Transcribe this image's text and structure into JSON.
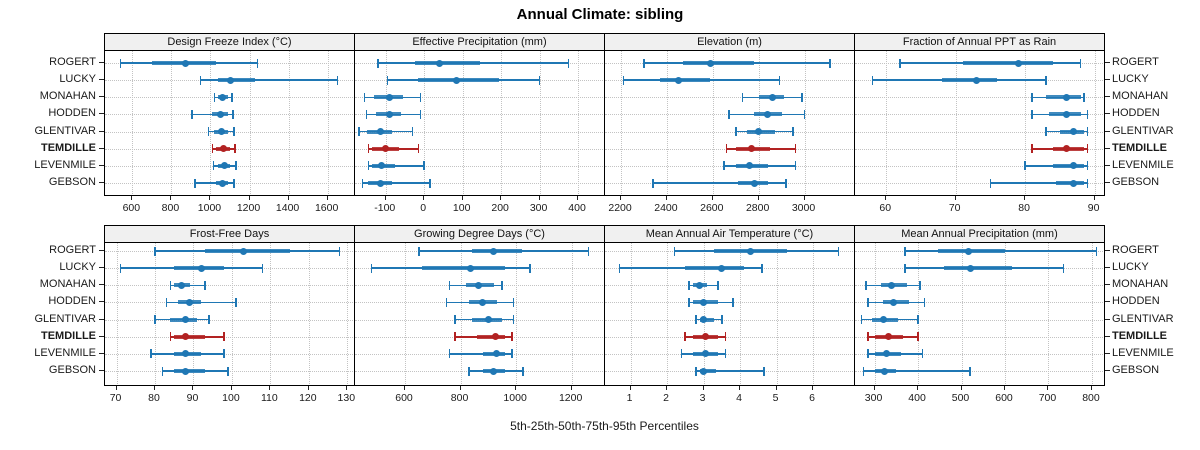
{
  "title": "Annual Climate: sibling",
  "caption": "5th-25th-50th-75th-95th Percentiles",
  "sites": [
    "ROGERT",
    "LUCKY",
    "MONAHAN",
    "HODDEN",
    "GLENTIVAR",
    "TEMDILLE",
    "LEVENMILE",
    "GEBSON"
  ],
  "highlight_site": "TEMDILLE",
  "colors": {
    "series": "#1f77b4",
    "highlight": "#b22222",
    "header_bg": "#f0f0f0",
    "panel_border": "#000000",
    "grid": "#c3c3c3",
    "tick": "#222222",
    "text": "#1a1a1a"
  },
  "chart_data": {
    "type": "dotplot",
    "percentiles": [
      "5th",
      "25th",
      "50th",
      "75th",
      "95th"
    ],
    "note": "values[siteIndex] = [p5, p25, p50, p75, p95] in site order",
    "legend_position": "none",
    "grid": true,
    "panels": [
      {
        "label": "Design Freeze Index (°C)",
        "row": 0,
        "col": 0,
        "domain": [
          460,
          1740
        ],
        "ticks": [
          600,
          800,
          1000,
          1200,
          1400,
          1600
        ],
        "values": [
          [
            540,
            700,
            870,
            1030,
            1240
          ],
          [
            950,
            1040,
            1100,
            1230,
            1650
          ],
          [
            1020,
            1040,
            1060,
            1090,
            1110
          ],
          [
            905,
            1010,
            1050,
            1090,
            1115
          ],
          [
            990,
            1020,
            1055,
            1090,
            1120
          ],
          [
            1010,
            1030,
            1065,
            1100,
            1125
          ],
          [
            1015,
            1040,
            1070,
            1100,
            1130
          ],
          [
            920,
            1030,
            1060,
            1090,
            1120
          ]
        ]
      },
      {
        "label": "Effective Precipitation (mm)",
        "row": 0,
        "col": 1,
        "domain": [
          -180,
          470
        ],
        "ticks": [
          -100,
          0,
          100,
          200,
          300,
          400
        ],
        "values": [
          [
            -120,
            -25,
            40,
            145,
            375
          ],
          [
            -95,
            -15,
            85,
            195,
            300
          ],
          [
            -155,
            -130,
            -90,
            -55,
            -10
          ],
          [
            -150,
            -125,
            -90,
            -60,
            -10
          ],
          [
            -170,
            -150,
            -115,
            -85,
            -30
          ],
          [
            -145,
            -135,
            -100,
            -65,
            -15
          ],
          [
            -145,
            -135,
            -110,
            -75,
            0
          ],
          [
            -160,
            -145,
            -115,
            -85,
            15
          ]
        ]
      },
      {
        "label": "Elevation (m)",
        "row": 0,
        "col": 2,
        "domain": [
          2130,
          3220
        ],
        "ticks": [
          2200,
          2400,
          2600,
          2800,
          3000
        ],
        "values": [
          [
            2300,
            2470,
            2590,
            2780,
            3110
          ],
          [
            2210,
            2370,
            2450,
            2590,
            2890
          ],
          [
            2730,
            2800,
            2860,
            2910,
            2990
          ],
          [
            2670,
            2780,
            2840,
            2900,
            3000
          ],
          [
            2700,
            2750,
            2800,
            2870,
            2950
          ],
          [
            2660,
            2700,
            2770,
            2850,
            2960
          ],
          [
            2650,
            2700,
            2760,
            2840,
            2960
          ],
          [
            2340,
            2710,
            2780,
            2840,
            2920
          ]
        ]
      },
      {
        "label": "Fraction of Annual PPT as Rain",
        "row": 0,
        "col": 3,
        "domain": [
          55.5,
          91.5
        ],
        "ticks": [
          60,
          70,
          80,
          90
        ],
        "values": [
          [
            62,
            71,
            79,
            84,
            88
          ],
          [
            58,
            68,
            73,
            76,
            83
          ],
          [
            81,
            83,
            86,
            88,
            88.5
          ],
          [
            81,
            83.5,
            86,
            88,
            89
          ],
          [
            83,
            85,
            87,
            88.5,
            89
          ],
          [
            81,
            84,
            86,
            88.5,
            89
          ],
          [
            80,
            84,
            87,
            88.5,
            89
          ],
          [
            75,
            84.5,
            87,
            88.5,
            89
          ]
        ]
      },
      {
        "label": "Frost-Free Days",
        "row": 1,
        "col": 0,
        "domain": [
          67,
          132
        ],
        "ticks": [
          70,
          80,
          90,
          100,
          110,
          120,
          130
        ],
        "values": [
          [
            80,
            93,
            103,
            115,
            128
          ],
          [
            71,
            85,
            92,
            98,
            108
          ],
          [
            84,
            85,
            87,
            89,
            93
          ],
          [
            83,
            86,
            89,
            92,
            101
          ],
          [
            80,
            84,
            88,
            91,
            94
          ],
          [
            84,
            85,
            88,
            93,
            98
          ],
          [
            79,
            85,
            88,
            92,
            98
          ],
          [
            82,
            85,
            88,
            93,
            99
          ]
        ]
      },
      {
        "label": "Growing Degree Days (°C)",
        "row": 1,
        "col": 1,
        "domain": [
          420,
          1320
        ],
        "ticks": [
          600,
          800,
          1000,
          1200
        ],
        "values": [
          [
            650,
            840,
            920,
            1020,
            1260
          ],
          [
            480,
            660,
            835,
            960,
            1050
          ],
          [
            760,
            820,
            865,
            920,
            950
          ],
          [
            750,
            830,
            880,
            930,
            990
          ],
          [
            780,
            840,
            900,
            950,
            990
          ],
          [
            780,
            860,
            925,
            960,
            985
          ],
          [
            760,
            880,
            930,
            960,
            985
          ],
          [
            830,
            880,
            920,
            960,
            1025
          ]
        ]
      },
      {
        "label": "Mean Annual Air Temperature (°C)",
        "row": 1,
        "col": 2,
        "domain": [
          0.3,
          7.15
        ],
        "ticks": [
          1,
          2,
          3,
          4,
          5,
          6
        ],
        "values": [
          [
            2.2,
            3.3,
            4.3,
            5.3,
            6.7
          ],
          [
            0.7,
            2.5,
            3.5,
            4.1,
            4.6
          ],
          [
            2.6,
            2.7,
            2.9,
            3.1,
            3.4
          ],
          [
            2.6,
            2.7,
            3.0,
            3.4,
            3.8
          ],
          [
            2.8,
            2.9,
            3.0,
            3.3,
            3.5
          ],
          [
            2.5,
            2.7,
            3.05,
            3.4,
            3.6
          ],
          [
            2.4,
            2.7,
            3.05,
            3.4,
            3.6
          ],
          [
            2.8,
            2.9,
            3.0,
            3.35,
            4.65
          ]
        ]
      },
      {
        "label": "Mean Annual Precipitation (mm)",
        "row": 1,
        "col": 3,
        "domain": [
          255,
          830
        ],
        "ticks": [
          300,
          400,
          500,
          600,
          700,
          800
        ],
        "values": [
          [
            370,
            445,
            515,
            600,
            810
          ],
          [
            370,
            460,
            520,
            615,
            735
          ],
          [
            280,
            315,
            340,
            375,
            405
          ],
          [
            285,
            320,
            343,
            380,
            415
          ],
          [
            270,
            295,
            320,
            355,
            400
          ],
          [
            285,
            300,
            332,
            365,
            400
          ],
          [
            285,
            300,
            327,
            360,
            410
          ],
          [
            275,
            300,
            322,
            350,
            520
          ]
        ]
      }
    ]
  }
}
